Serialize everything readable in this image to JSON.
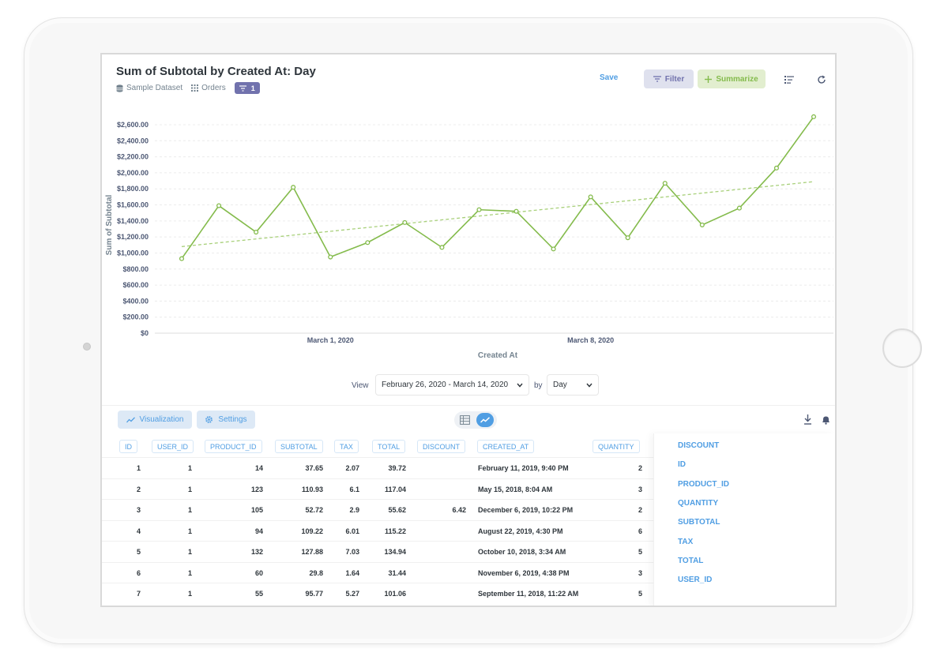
{
  "header": {
    "title": "Sum of Subtotal by Created At: Day",
    "breadcrumb": {
      "database": "Sample Dataset",
      "table": "Orders",
      "filter_count": "1"
    },
    "save_label": "Save",
    "filter_label": "Filter",
    "summarize_label": "Summarize",
    "colors": {
      "filter_bg": "#dfe1ee",
      "filter_fg": "#7172ad",
      "summarize_bg": "#e2eecf",
      "summarize_fg": "#84bb4c",
      "brand": "#509ee3"
    }
  },
  "chart_data": {
    "type": "line",
    "xlabel": "Created At",
    "ylabel": "Sum of Subtotal",
    "ylim": [
      0,
      2600
    ],
    "yticks": [
      {
        "value": 0,
        "label": "$0"
      },
      {
        "value": 200,
        "label": "$200.00"
      },
      {
        "value": 400,
        "label": "$400.00"
      },
      {
        "value": 600,
        "label": "$600.00"
      },
      {
        "value": 800,
        "label": "$800.00"
      },
      {
        "value": 1000,
        "label": "$1,000.00"
      },
      {
        "value": 1200,
        "label": "$1,200.00"
      },
      {
        "value": 1400,
        "label": "$1,400.00"
      },
      {
        "value": 1600,
        "label": "$1,600.00"
      },
      {
        "value": 1800,
        "label": "$1,800.00"
      },
      {
        "value": 2000,
        "label": "$2,000.00"
      },
      {
        "value": 2200,
        "label": "$2,200.00"
      },
      {
        "value": 2400,
        "label": "$2,400.00"
      },
      {
        "value": 2600,
        "label": "$2,600.00"
      }
    ],
    "xticks": [
      {
        "index": 4,
        "label": "March 1, 2020"
      },
      {
        "index": 11,
        "label": "March 8, 2020"
      }
    ],
    "x": [
      "2020-02-26",
      "2020-02-27",
      "2020-02-28",
      "2020-02-29",
      "2020-03-01",
      "2020-03-02",
      "2020-03-03",
      "2020-03-04",
      "2020-03-05",
      "2020-03-06",
      "2020-03-07",
      "2020-03-08",
      "2020-03-09",
      "2020-03-10",
      "2020-03-11",
      "2020-03-12",
      "2020-03-13",
      "2020-03-14"
    ],
    "series": [
      {
        "values": [
          930,
          1590,
          1260,
          1820,
          950,
          1130,
          1380,
          1070,
          1540,
          1520,
          1050,
          1700,
          1190,
          1870,
          1350,
          1560,
          2060,
          2700
        ],
        "color": "#84bb4c"
      }
    ],
    "trendline": {
      "from": 1080,
      "to": 1890,
      "color": "#a8d07a"
    },
    "grid": true
  },
  "view": {
    "view_label": "View",
    "date_range": "February 26, 2020 - March 14, 2020",
    "by_label": "by",
    "unit": "Day"
  },
  "bottom_bar": {
    "visualization_label": "Visualization",
    "settings_label": "Settings"
  },
  "table": {
    "columns": [
      "ID",
      "USER_ID",
      "PRODUCT_ID",
      "SUBTOTAL",
      "TAX",
      "TOTAL",
      "DISCOUNT",
      "CREATED_AT",
      "QUANTITY"
    ],
    "rows": [
      [
        "1",
        "1",
        "14",
        "37.65",
        "2.07",
        "39.72",
        "",
        "February 11, 2019, 9:40 PM",
        "2"
      ],
      [
        "2",
        "1",
        "123",
        "110.93",
        "6.1",
        "117.04",
        "",
        "May 15, 2018, 8:04 AM",
        "3"
      ],
      [
        "3",
        "1",
        "105",
        "52.72",
        "2.9",
        "55.62",
        "6.42",
        "December 6, 2019, 10:22 PM",
        "2"
      ],
      [
        "4",
        "1",
        "94",
        "109.22",
        "6.01",
        "115.22",
        "",
        "August 22, 2019, 4:30 PM",
        "6"
      ],
      [
        "5",
        "1",
        "132",
        "127.88",
        "7.03",
        "134.94",
        "",
        "October 10, 2018, 3:34 AM",
        "5"
      ],
      [
        "6",
        "1",
        "60",
        "29.8",
        "1.64",
        "31.44",
        "",
        "November 6, 2019, 4:38 PM",
        "3"
      ],
      [
        "7",
        "1",
        "55",
        "95.77",
        "5.27",
        "101.06",
        "",
        "September 11, 2018, 11:22 AM",
        "5"
      ]
    ]
  },
  "side_columns": [
    "DISCOUNT",
    "ID",
    "PRODUCT_ID",
    "QUANTITY",
    "SUBTOTAL",
    "TAX",
    "TOTAL",
    "USER_ID"
  ]
}
